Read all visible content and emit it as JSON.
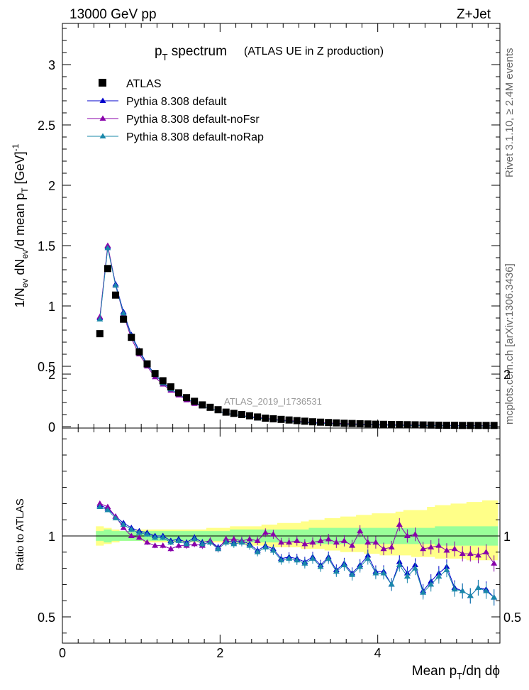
{
  "header": {
    "left": "13000 GeV pp",
    "right": "Z+Jet"
  },
  "side_labels": {
    "rivet": "Rivet 3.1.10, ≥ 2.4M events",
    "mcplots": "mcplots.cern.ch [arXiv:1306.3436]"
  },
  "chart_data": {
    "type": "line",
    "title_main": "p",
    "title_sub": "T",
    "title_rest": " spectrum",
    "title_small": "(ATLAS UE in Z production)",
    "watermark": "ATLAS_2019_I1736531",
    "ylabel": {
      "a": "1/N",
      "a_sub": "ev",
      "b": " dN",
      "b_sub": "ev",
      "c": "/d mean p",
      "c_sub": "T",
      "d": " [GeV]",
      "d_sup": "-1"
    },
    "xlabel": {
      "a": "Mean p",
      "a_sub": "T",
      "b": "/dη dϕ"
    },
    "ratio_ylabel": "Ratio to ATLAS",
    "xlim": [
      0,
      5.55
    ],
    "ylim": [
      0,
      3.35
    ],
    "ratio_ylim": [
      0.35,
      2.3
    ],
    "x_ticks": [
      0,
      2,
      4
    ],
    "y_ticks": [
      0,
      0.5,
      1,
      1.5,
      2,
      2.5,
      3
    ],
    "y_tick_labels": [
      "0",
      "0.5",
      "1",
      "1.5",
      "2",
      "2.5",
      "3"
    ],
    "ratio_ticks": [
      0.5,
      1,
      2
    ],
    "ratio_tick_labels": [
      "0.5",
      "1",
      "2"
    ],
    "x": [
      0.475,
      0.575,
      0.675,
      0.775,
      0.875,
      0.975,
      1.075,
      1.175,
      1.275,
      1.375,
      1.475,
      1.575,
      1.675,
      1.775,
      1.875,
      1.975,
      2.075,
      2.175,
      2.275,
      2.375,
      2.475,
      2.575,
      2.675,
      2.775,
      2.875,
      2.975,
      3.075,
      3.175,
      3.275,
      3.375,
      3.475,
      3.575,
      3.675,
      3.775,
      3.875,
      3.975,
      4.075,
      4.175,
      4.275,
      4.375,
      4.475,
      4.575,
      4.675,
      4.775,
      4.875,
      4.975,
      5.075,
      5.175,
      5.275,
      5.375,
      5.475
    ],
    "atlas": [
      0.77,
      1.31,
      1.09,
      0.89,
      0.74,
      0.62,
      0.52,
      0.44,
      0.38,
      0.33,
      0.28,
      0.24,
      0.21,
      0.18,
      0.16,
      0.14,
      0.12,
      0.11,
      0.1,
      0.09,
      0.08,
      0.07,
      0.065,
      0.06,
      0.055,
      0.05,
      0.045,
      0.04,
      0.037,
      0.034,
      0.031,
      0.028,
      0.026,
      0.024,
      0.022,
      0.02,
      0.019,
      0.018,
      0.017,
      0.016,
      0.015,
      0.014,
      0.013,
      0.012,
      0.011,
      0.011,
      0.01,
      0.01,
      0.01,
      0.01,
      0.01
    ],
    "series": [
      {
        "name": "Pythia 8.308 default",
        "color": "#0000cc",
        "values": [
          0.9,
          1.49,
          1.18,
          0.95,
          0.76,
          0.63,
          0.52,
          0.43,
          0.37,
          0.31,
          0.27,
          0.23,
          0.2,
          0.17,
          0.15,
          0.13,
          0.11,
          0.1,
          0.09,
          0.08,
          0.07,
          0.065,
          0.06,
          0.05,
          0.045,
          0.04,
          0.035,
          0.03,
          0.027,
          0.025,
          0.022,
          0.02,
          0.019,
          0.017,
          0.016,
          0.015,
          0.013,
          0.012,
          0.011,
          0.01,
          0.01,
          0.009,
          0.008,
          0.008,
          0.008,
          0.007,
          0.007,
          0.006,
          0.006,
          0.006,
          0.006
        ],
        "ratio": [
          1.19,
          1.17,
          1.12,
          1.08,
          1.05,
          1.03,
          1.02,
          1.0,
          1.0,
          0.97,
          0.98,
          0.96,
          0.99,
          0.96,
          0.97,
          0.93,
          0.97,
          0.96,
          0.97,
          0.95,
          0.91,
          0.94,
          0.92,
          0.86,
          0.87,
          0.86,
          0.84,
          0.87,
          0.82,
          0.87,
          0.79,
          0.83,
          0.77,
          0.82,
          0.88,
          0.78,
          0.78,
          0.7,
          0.84,
          0.77,
          0.82,
          0.66,
          0.72,
          0.77,
          0.81,
          0.68,
          0.66,
          0.63,
          0.68,
          0.67,
          0.62
        ]
      },
      {
        "name": "Pythia 8.308 default-noFsr",
        "color": "#8800aa",
        "values": [
          0.91,
          1.5,
          1.17,
          0.93,
          0.73,
          0.6,
          0.5,
          0.41,
          0.35,
          0.3,
          0.26,
          0.22,
          0.19,
          0.17,
          0.15,
          0.13,
          0.11,
          0.1,
          0.09,
          0.085,
          0.075,
          0.07,
          0.06,
          0.055,
          0.05,
          0.045,
          0.04,
          0.036,
          0.033,
          0.03,
          0.028,
          0.025,
          0.023,
          0.021,
          0.02,
          0.018,
          0.017,
          0.016,
          0.015,
          0.014,
          0.013,
          0.012,
          0.011,
          0.011,
          0.01,
          0.01,
          0.009,
          0.009,
          0.009,
          0.008,
          0.008
        ],
        "ratio": [
          1.2,
          1.18,
          1.12,
          1.05,
          1.0,
          0.99,
          0.96,
          0.94,
          0.94,
          0.92,
          0.94,
          0.94,
          0.95,
          0.94,
          0.97,
          0.92,
          0.98,
          0.98,
          0.97,
          0.98,
          0.97,
          1.02,
          1.01,
          0.96,
          0.96,
          0.97,
          0.95,
          0.96,
          0.97,
          0.98,
          0.96,
          0.97,
          0.94,
          1.03,
          0.96,
          0.96,
          0.92,
          0.93,
          1.07,
          1.0,
          1.01,
          0.92,
          0.93,
          0.94,
          0.91,
          0.92,
          0.89,
          0.89,
          0.88,
          0.9,
          0.83
        ]
      },
      {
        "name": "Pythia 8.308 default-noRap",
        "color": "#1a88aa",
        "values": [
          0.89,
          1.48,
          1.17,
          0.94,
          0.75,
          0.62,
          0.51,
          0.43,
          0.36,
          0.31,
          0.27,
          0.23,
          0.2,
          0.17,
          0.15,
          0.13,
          0.11,
          0.1,
          0.09,
          0.08,
          0.07,
          0.065,
          0.058,
          0.05,
          0.045,
          0.04,
          0.035,
          0.03,
          0.027,
          0.024,
          0.022,
          0.02,
          0.018,
          0.017,
          0.016,
          0.014,
          0.013,
          0.012,
          0.011,
          0.01,
          0.009,
          0.009,
          0.008,
          0.008,
          0.007,
          0.007,
          0.006,
          0.006,
          0.006,
          0.006,
          0.006
        ],
        "ratio": [
          1.18,
          1.16,
          1.11,
          1.07,
          1.04,
          1.02,
          1.01,
          0.99,
          0.99,
          0.96,
          0.97,
          0.95,
          0.98,
          0.95,
          0.96,
          0.92,
          0.96,
          0.95,
          0.96,
          0.94,
          0.9,
          0.93,
          0.91,
          0.85,
          0.86,
          0.85,
          0.83,
          0.86,
          0.81,
          0.86,
          0.78,
          0.82,
          0.76,
          0.81,
          0.86,
          0.77,
          0.77,
          0.7,
          0.82,
          0.75,
          0.8,
          0.65,
          0.7,
          0.75,
          0.79,
          0.67,
          0.66,
          0.63,
          0.68,
          0.66,
          0.62
        ]
      }
    ],
    "ratio_band_inner": [
      [
        0.97,
        1.03
      ],
      [
        0.96,
        1.04
      ],
      [
        0.97,
        1.03
      ],
      [
        0.97,
        1.03
      ],
      [
        0.97,
        1.03
      ],
      [
        0.97,
        1.03
      ],
      [
        0.97,
        1.03
      ],
      [
        0.97,
        1.03
      ],
      [
        0.97,
        1.03
      ],
      [
        0.97,
        1.03
      ],
      [
        0.97,
        1.03
      ],
      [
        0.97,
        1.03
      ],
      [
        0.97,
        1.03
      ],
      [
        0.97,
        1.03
      ],
      [
        0.97,
        1.03
      ],
      [
        0.97,
        1.03
      ],
      [
        0.97,
        1.03
      ],
      [
        0.96,
        1.04
      ],
      [
        0.96,
        1.04
      ],
      [
        0.96,
        1.04
      ],
      [
        0.96,
        1.04
      ],
      [
        0.96,
        1.04
      ],
      [
        0.96,
        1.04
      ],
      [
        0.96,
        1.04
      ],
      [
        0.96,
        1.04
      ],
      [
        0.96,
        1.04
      ],
      [
        0.96,
        1.04
      ],
      [
        0.95,
        1.05
      ],
      [
        0.95,
        1.05
      ],
      [
        0.95,
        1.05
      ],
      [
        0.95,
        1.05
      ],
      [
        0.95,
        1.05
      ],
      [
        0.95,
        1.05
      ],
      [
        0.95,
        1.05
      ],
      [
        0.95,
        1.05
      ],
      [
        0.95,
        1.05
      ],
      [
        0.95,
        1.05
      ],
      [
        0.95,
        1.05
      ],
      [
        0.95,
        1.05
      ],
      [
        0.95,
        1.05
      ],
      [
        0.95,
        1.05
      ],
      [
        0.95,
        1.05
      ],
      [
        0.95,
        1.05
      ],
      [
        0.94,
        1.06
      ],
      [
        0.94,
        1.06
      ],
      [
        0.94,
        1.06
      ],
      [
        0.94,
        1.06
      ],
      [
        0.94,
        1.06
      ],
      [
        0.94,
        1.06
      ],
      [
        0.94,
        1.06
      ],
      [
        0.94,
        1.06
      ]
    ],
    "ratio_band_outer": [
      [
        0.94,
        1.06
      ],
      [
        0.95,
        1.05
      ],
      [
        0.96,
        1.04
      ],
      [
        0.97,
        1.03
      ],
      [
        0.97,
        1.03
      ],
      [
        0.97,
        1.04
      ],
      [
        0.96,
        1.04
      ],
      [
        0.96,
        1.04
      ],
      [
        0.96,
        1.04
      ],
      [
        0.96,
        1.04
      ],
      [
        0.96,
        1.04
      ],
      [
        0.96,
        1.04
      ],
      [
        0.96,
        1.04
      ],
      [
        0.96,
        1.04
      ],
      [
        0.96,
        1.05
      ],
      [
        0.96,
        1.05
      ],
      [
        0.95,
        1.05
      ],
      [
        0.95,
        1.06
      ],
      [
        0.95,
        1.06
      ],
      [
        0.94,
        1.06
      ],
      [
        0.94,
        1.06
      ],
      [
        0.94,
        1.07
      ],
      [
        0.93,
        1.07
      ],
      [
        0.93,
        1.08
      ],
      [
        0.93,
        1.08
      ],
      [
        0.93,
        1.08
      ],
      [
        0.92,
        1.09
      ],
      [
        0.92,
        1.1
      ],
      [
        0.92,
        1.1
      ],
      [
        0.91,
        1.11
      ],
      [
        0.91,
        1.11
      ],
      [
        0.9,
        1.12
      ],
      [
        0.9,
        1.12
      ],
      [
        0.9,
        1.13
      ],
      [
        0.89,
        1.13
      ],
      [
        0.89,
        1.14
      ],
      [
        0.88,
        1.14
      ],
      [
        0.88,
        1.14
      ],
      [
        0.88,
        1.15
      ],
      [
        0.88,
        1.16
      ],
      [
        0.87,
        1.16
      ],
      [
        0.87,
        1.16
      ],
      [
        0.87,
        1.18
      ],
      [
        0.86,
        1.19
      ],
      [
        0.86,
        1.19
      ],
      [
        0.86,
        1.2
      ],
      [
        0.86,
        1.2
      ],
      [
        0.85,
        1.21
      ],
      [
        0.85,
        1.21
      ],
      [
        0.85,
        1.22
      ],
      [
        0.85,
        1.22
      ]
    ],
    "legend": {
      "atlas_label": "ATLAS",
      "s0": "Pythia 8.308 default",
      "s1": "Pythia 8.308 default-noFsr",
      "s2": "Pythia 8.308 default-noRap"
    },
    "colors": {
      "band_inner": "#99ff99",
      "band_outer": "#ffff88",
      "atlas": "#000000"
    }
  }
}
